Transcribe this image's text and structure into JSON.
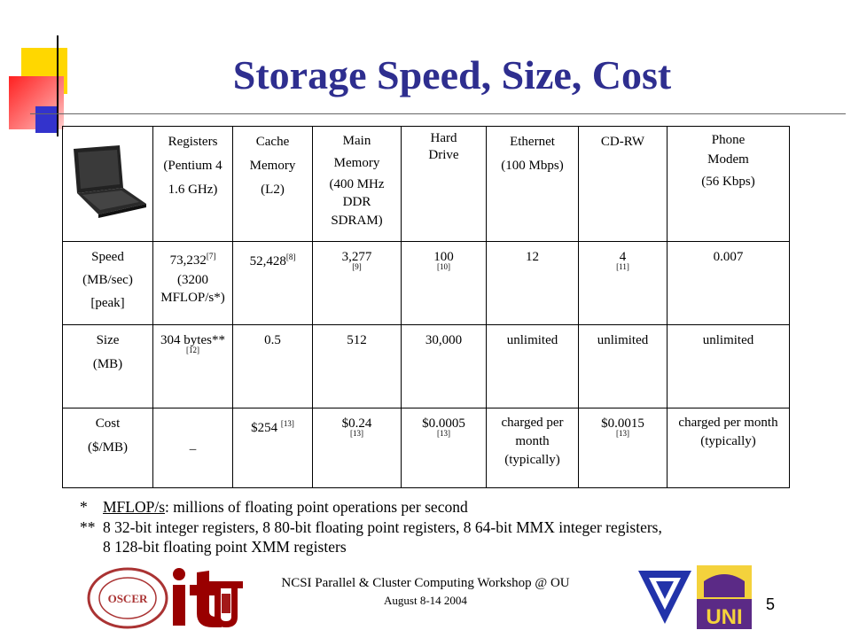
{
  "slide": {
    "title": "Storage Speed, Size, Cost",
    "page_number": "5",
    "accent_color": "#2e2e8f"
  },
  "table": {
    "header": {
      "image": "laptop-image",
      "registers": [
        "Registers",
        "(Pentium 4",
        "1.6 GHz)"
      ],
      "cache": [
        "Cache",
        "Memory",
        "(L2)"
      ],
      "main": [
        "Main",
        "Memory",
        "(400 MHz",
        "DDR",
        "SDRAM)"
      ],
      "hard_drive": [
        "Hard",
        "Drive"
      ],
      "ethernet": [
        "Ethernet",
        "(100 Mbps)"
      ],
      "cdrw": [
        "CD-RW"
      ],
      "modem": [
        "Phone",
        "Modem",
        "(56 Kbps)"
      ]
    },
    "speed": {
      "label": [
        "Speed",
        "(MB/sec)",
        "[peak]"
      ],
      "registers": "73,232",
      "registers_ref": "[7]",
      "registers_note": "(3200 MFLOP/s*)",
      "cache": "52,428",
      "cache_ref": "[8]",
      "main": "3,277",
      "main_ref": "[9]",
      "hard_drive": "100",
      "hard_drive_ref": "[10]",
      "ethernet": "12",
      "cdrw": "4",
      "cdrw_ref": "[11]",
      "modem": "0.007"
    },
    "size": {
      "label": [
        "Size",
        "(MB)"
      ],
      "registers": "304 bytes**",
      "registers_ref": "[12]",
      "cache": "0.5",
      "main": "512",
      "hard_drive": "30,000",
      "ethernet": "unlimited",
      "cdrw": "unlimited",
      "modem": "unlimited"
    },
    "cost": {
      "label": [
        "Cost",
        "($/MB)"
      ],
      "registers": "–",
      "cache": "$254",
      "cache_ref": "[13]",
      "main": "$0.24",
      "main_ref": "[13]",
      "hard_drive": "$0.0005",
      "hard_drive_ref": "[13]",
      "ethernet": "charged per month (typically)",
      "cdrw": "$0.0015",
      "cdrw_ref": "[13]",
      "modem": "charged per month (typically)"
    }
  },
  "notes": {
    "note1_mark": "*",
    "note1_term": "MFLOP/s",
    "note1_text": ": millions of floating point operations per second",
    "note2_mark": "**",
    "note2_line1": "8 32-bit integer registers, 8 80-bit floating point registers, 8 64-bit MMX integer registers,",
    "note2_line2": "8 128-bit floating point XMM registers"
  },
  "footer": {
    "line1": "NCSI Parallel & Cluster Computing Workshop @ OU",
    "line2": "August 8-14 2004"
  },
  "logos": {
    "oscer": "oscer-seal-logo",
    "it": "it-logo",
    "ou": "ou-logo",
    "triangle": "triangle-logo",
    "uni": "uni-logo",
    "oscer_text": "OSCER",
    "uni_text": "UNI"
  }
}
